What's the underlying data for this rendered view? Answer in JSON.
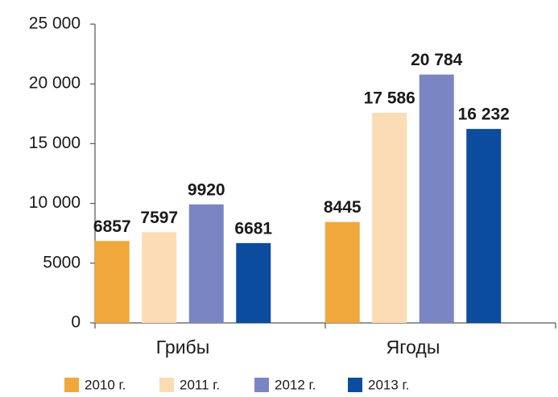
{
  "chart_data": {
    "type": "bar",
    "categories": [
      "Грибы",
      "Ягоды"
    ],
    "series": [
      {
        "name": "2010 г.",
        "color": "#f0a83c",
        "values": [
          6857,
          8445
        ],
        "value_labels": [
          "6857",
          "8445"
        ]
      },
      {
        "name": "2011 г.",
        "color": "#fbdcb5",
        "values": [
          7597,
          17586
        ],
        "value_labels": [
          "7597",
          "17 586"
        ]
      },
      {
        "name": "2012 г.",
        "color": "#7a86c4",
        "values": [
          9920,
          20784
        ],
        "value_labels": [
          "9920",
          "20 784"
        ]
      },
      {
        "name": "2013 г.",
        "color": "#0b4c9e",
        "values": [
          6681,
          16232
        ],
        "value_labels": [
          "6681",
          "16 232"
        ]
      }
    ],
    "ylim": [
      0,
      25000
    ],
    "yticks": [
      0,
      5000,
      {
        "value": 10000,
        "label": "10 000"
      },
      {
        "value": 15000,
        "label": "15 000"
      },
      {
        "value": 20000,
        "label": "20 000"
      },
      {
        "value": 25000,
        "label": "25 000"
      }
    ],
    "grid": false,
    "legend": "bottom"
  }
}
